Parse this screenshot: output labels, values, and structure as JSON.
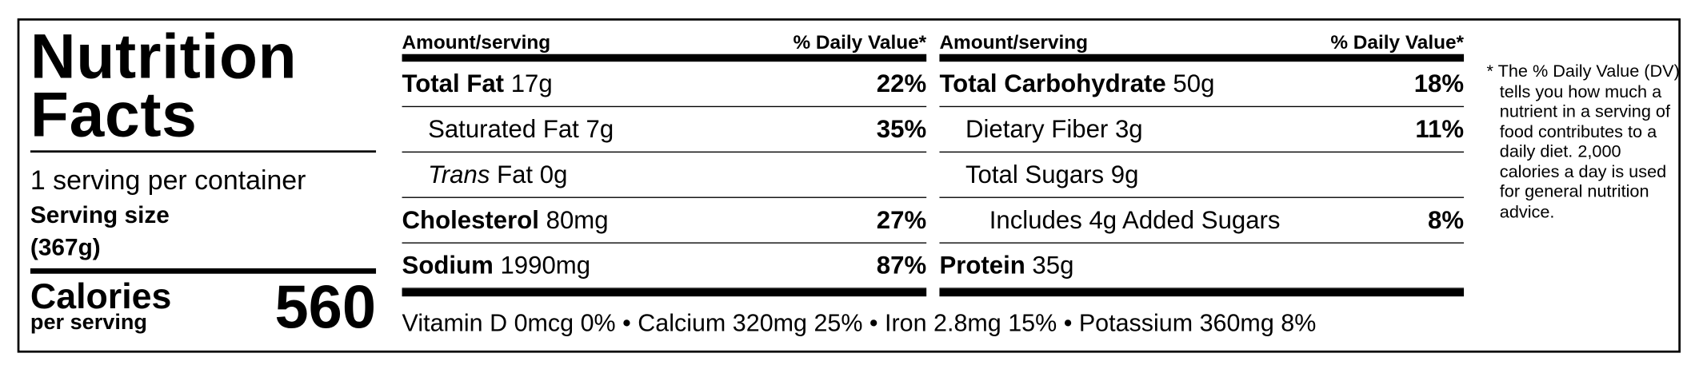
{
  "title": "Nutrition Facts",
  "servings": "1 serving per container",
  "serving_size_label": "Serving size",
  "serving_size": "(367g)",
  "calories_label": "Calories",
  "calories_sub": "per serving",
  "calories": 560,
  "columns": [
    {
      "header": {
        "amount": "Amount/serving",
        "dv": "% Daily Value*"
      },
      "rows": [
        {
          "name": "Total Fat",
          "amount": "17g",
          "dv": "22%"
        },
        {
          "name": "Saturated Fat",
          "amount": "7g",
          "dv": "35%"
        },
        {
          "name_italic": "Trans",
          "name": "Fat",
          "amount": "0g"
        },
        {
          "name": "Cholesterol",
          "amount": "80mg",
          "dv": "27%"
        },
        {
          "name": "Sodium",
          "amount": "1990mg",
          "dv": "87%"
        }
      ]
    },
    {
      "header": {
        "amount": "Amount/serving",
        "dv": "% Daily Value*"
      },
      "rows": [
        {
          "name": "Total Carbohydrate",
          "amount": "50g",
          "dv": "18%"
        },
        {
          "name": "Dietary Fiber",
          "amount": "3g",
          "dv": "11%"
        },
        {
          "name": "Total Sugars",
          "amount": "9g"
        },
        {
          "name": "Includes 4g Added Sugars",
          "dv": "8%"
        },
        {
          "name": "Protein",
          "amount": "35g"
        }
      ]
    }
  ],
  "vitamins": "Vitamin D 0mcg 0% • Calcium 320mg 25% • Iron 2.8mg 15% • Potassium 360mg 8%",
  "footnote": "* The % Daily Value (DV) tells you how much a nutrient in a serving of food contributes to a daily diet. 2,000 calories a day is used for general nutrition advice."
}
